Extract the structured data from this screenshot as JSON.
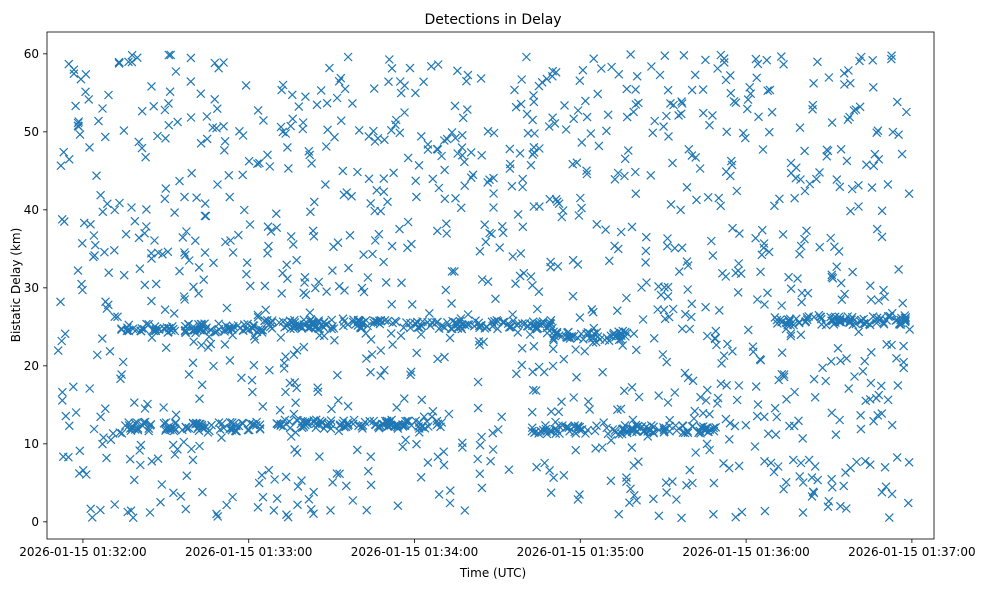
{
  "chart_data": {
    "type": "scatter",
    "title": "Detections in Delay",
    "xlabel": "Time (UTC)",
    "ylabel": "Bistatic Delay (km)",
    "x_is_datetime": true,
    "xlim": [
      "2026-01-15 01:31:47",
      "2026-01-15 01:37:08"
    ],
    "ylim": [
      -2.2,
      62.8
    ],
    "x_ticks": [
      "2026-01-15 01:32:00",
      "2026-01-15 01:33:00",
      "2026-01-15 01:34:00",
      "2026-01-15 01:35:00",
      "2026-01-15 01:36:00",
      "2026-01-15 01:37:00"
    ],
    "y_ticks": [
      0,
      10,
      20,
      30,
      40,
      50,
      60
    ],
    "marker": "x",
    "marker_color": "#1f77b4",
    "grid": false,
    "legend": "none",
    "series": [
      {
        "x_start": "2026-01-15 01:31:51",
        "x_end": "2026-01-15 01:37:00",
        "delay_km_range": [
          0.5,
          60
        ],
        "note_clusters": [
          {
            "from": "01:32:15",
            "to": "01:33:05",
            "delay_km": 24.8
          },
          {
            "from": "01:33:05",
            "to": "01:34:50",
            "delay_km": 25.3
          },
          {
            "from": "01:34:50",
            "to": "01:35:20",
            "delay_km": 23.8
          },
          {
            "from": "01:36:10",
            "to": "01:37:00",
            "delay_km": 25.8
          },
          {
            "from": "01:32:15",
            "to": "01:33:05",
            "delay_km": 12.2
          },
          {
            "from": "01:33:10",
            "to": "01:34:10",
            "delay_km": 12.5
          },
          {
            "from": "01:34:40",
            "to": "01:35:50",
            "delay_km": 11.8
          }
        ]
      }
    ]
  }
}
